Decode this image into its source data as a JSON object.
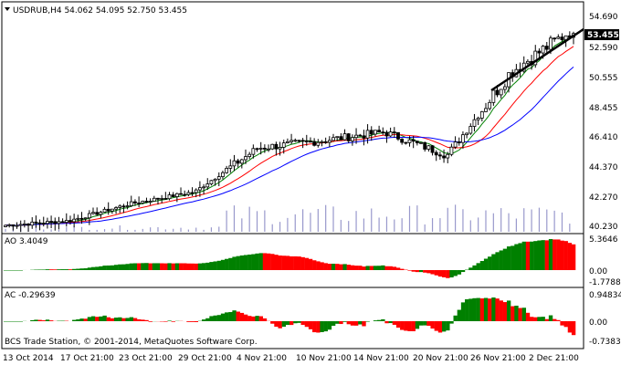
{
  "chart": {
    "symbol_line": "USDRUB,H4  54.062 54.095 52.750 53.455",
    "current_price": "53.455",
    "price_labels": [
      "54.690",
      "52.590",
      "50.555",
      "48.455",
      "46.410",
      "44.370",
      "42.270",
      "40.230"
    ],
    "ao_title": "AO 3.4049",
    "ao_labels": [
      "5.3646",
      "0.00",
      "-1.7788"
    ],
    "ac_title": "AC -0.29639",
    "ac_labels": [
      "0.94834",
      "0.00",
      "-0.7383"
    ],
    "copyright": "BCS Trade Station, © 2001-2014, MetaQuotes Software Corp.",
    "time_labels": [
      "13 Oct 2014",
      "17 Oct 21:00",
      "23 Oct 21:00",
      "29 Oct 21:00",
      "4 Nov 21:00",
      "10 Nov 21:00",
      "14 Nov 21:00",
      "20 Nov 21:00",
      "26 Nov 21:00",
      "2 Dec 21:00"
    ]
  },
  "colors": {
    "up": "#008000",
    "down": "#ff0000",
    "ma_fast": "#008000",
    "ma_mid": "#ff0000",
    "ma_slow": "#0000ff",
    "volume": "#9999cc",
    "trend": "#000000"
  },
  "chart_data": {
    "type": "candlestick",
    "symbol": "USDRUB",
    "timeframe": "H4",
    "ohlc": {
      "open": 54.062,
      "high": 54.095,
      "low": 52.75,
      "close": 53.455
    },
    "y_range": [
      40.23,
      54.69
    ],
    "anchors": [
      {
        "t": "13 Oct 2014",
        "price": 40.3
      },
      {
        "t": "17 Oct 21:00",
        "price": 40.6
      },
      {
        "t": "23 Oct 21:00",
        "price": 41.8
      },
      {
        "t": "29 Oct 21:00",
        "price": 42.6
      },
      {
        "t": "4 Nov 21:00",
        "price": 45.6
      },
      {
        "t": "10 Nov 21:00",
        "price": 46.1
      },
      {
        "t": "14 Nov 21:00",
        "price": 46.7
      },
      {
        "t": "20 Nov 21:00",
        "price": 45.1
      },
      {
        "t": "26 Nov 21:00",
        "price": 50.8
      },
      {
        "t": "2 Dec 21:00",
        "price": 53.8
      }
    ],
    "ao_range": [
      -1.7788,
      5.3646
    ],
    "ac_range": [
      -0.7383,
      0.94834
    ]
  }
}
